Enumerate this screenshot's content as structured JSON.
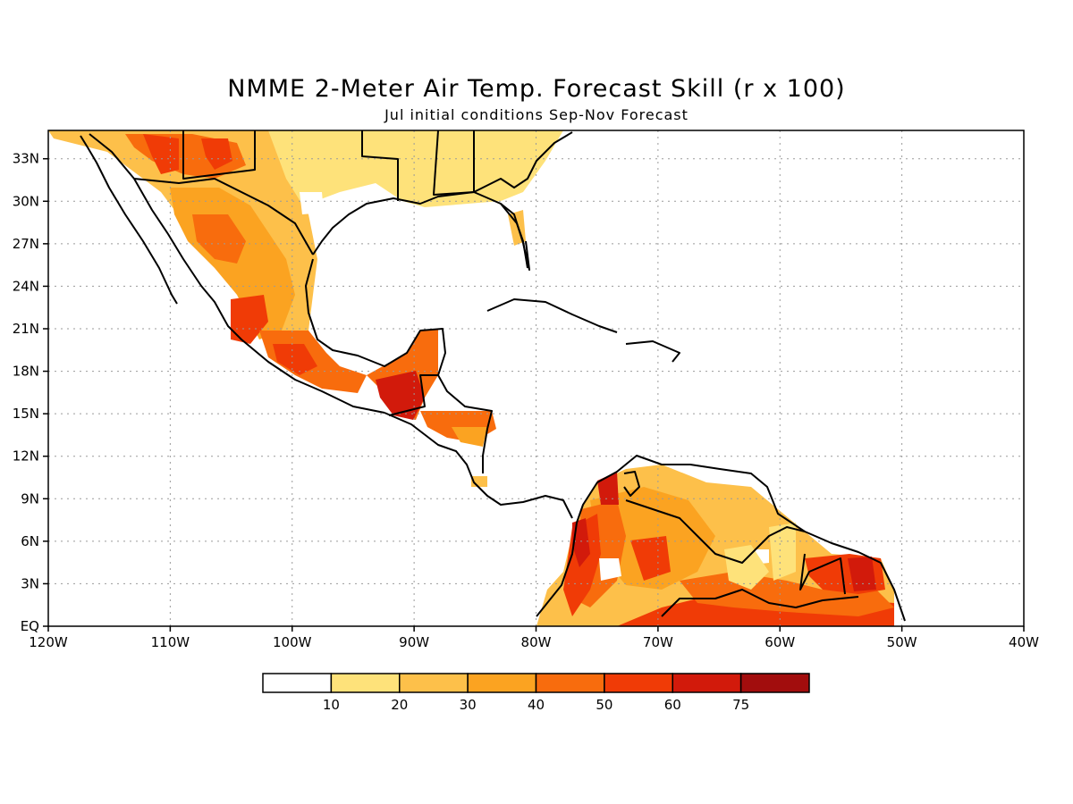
{
  "title": "NMME 2-Meter Air Temp. Forecast Skill (r x 100)",
  "subtitle": "Jul initial conditions  Sep-Nov Forecast",
  "map": {
    "lon_range": [
      -120,
      -40
    ],
    "lat_range": [
      0,
      35
    ],
    "lon_labels": [
      "120W",
      "110W",
      "100W",
      "90W",
      "80W",
      "70W",
      "60W",
      "50W",
      "40W"
    ],
    "lat_labels": [
      "EQ",
      "3N",
      "6N",
      "9N",
      "12N",
      "15N",
      "18N",
      "21N",
      "24N",
      "27N",
      "30N",
      "33N"
    ],
    "grid": "dotted"
  },
  "colorbar": {
    "colors": [
      "#ffffff",
      "#fee27a",
      "#fdc04a",
      "#fba321",
      "#f86c0d",
      "#f03b06",
      "#d21a0b",
      "#a20d0d"
    ],
    "labels": [
      "10",
      "20",
      "30",
      "40",
      "50",
      "60",
      "75"
    ]
  }
}
